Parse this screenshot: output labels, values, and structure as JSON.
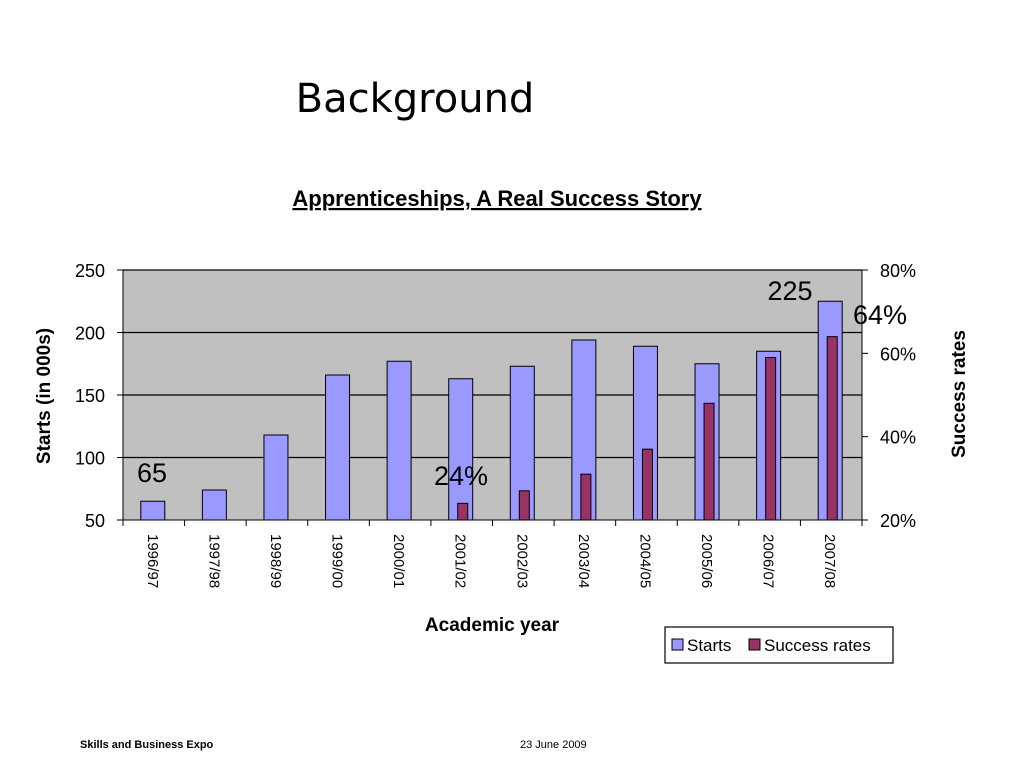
{
  "slide": {
    "title": "Background",
    "footer_left": "Skills and Business Expo",
    "footer_right": "23 June 2009"
  },
  "chart_data": {
    "type": "bar",
    "title": "Apprenticeships, A Real Success Story",
    "xlabel": "Academic year",
    "ylabel": "Starts (in 000s)",
    "y2label": "Success rates",
    "categories": [
      "1996/97",
      "1997/98",
      "1998/99",
      "1999/00",
      "2000/01",
      "2001/02",
      "2002/03",
      "2003/04",
      "2004/05",
      "2005/06",
      "2006/07",
      "2007/08"
    ],
    "ylim": [
      50,
      250
    ],
    "yticks": [
      "50",
      "100",
      "150",
      "200",
      "250"
    ],
    "y2lim": [
      20,
      80
    ],
    "y2ticks": [
      "20%",
      "40%",
      "60%",
      "80%"
    ],
    "series": [
      {
        "name": "Starts",
        "axis": "left",
        "color": "#9999ff",
        "values": [
          65,
          74,
          118,
          166,
          177,
          163,
          173,
          194,
          189,
          175,
          185,
          225
        ]
      },
      {
        "name": "Success rates",
        "axis": "right",
        "color": "#993366",
        "values": [
          null,
          null,
          null,
          null,
          null,
          24,
          27,
          31,
          37,
          48,
          59,
          64
        ]
      }
    ],
    "annotations": [
      "65",
      "24%",
      "225",
      "64%"
    ],
    "plot_background": "#c0c0c0",
    "grid": true,
    "legend_position": "bottom-right"
  }
}
